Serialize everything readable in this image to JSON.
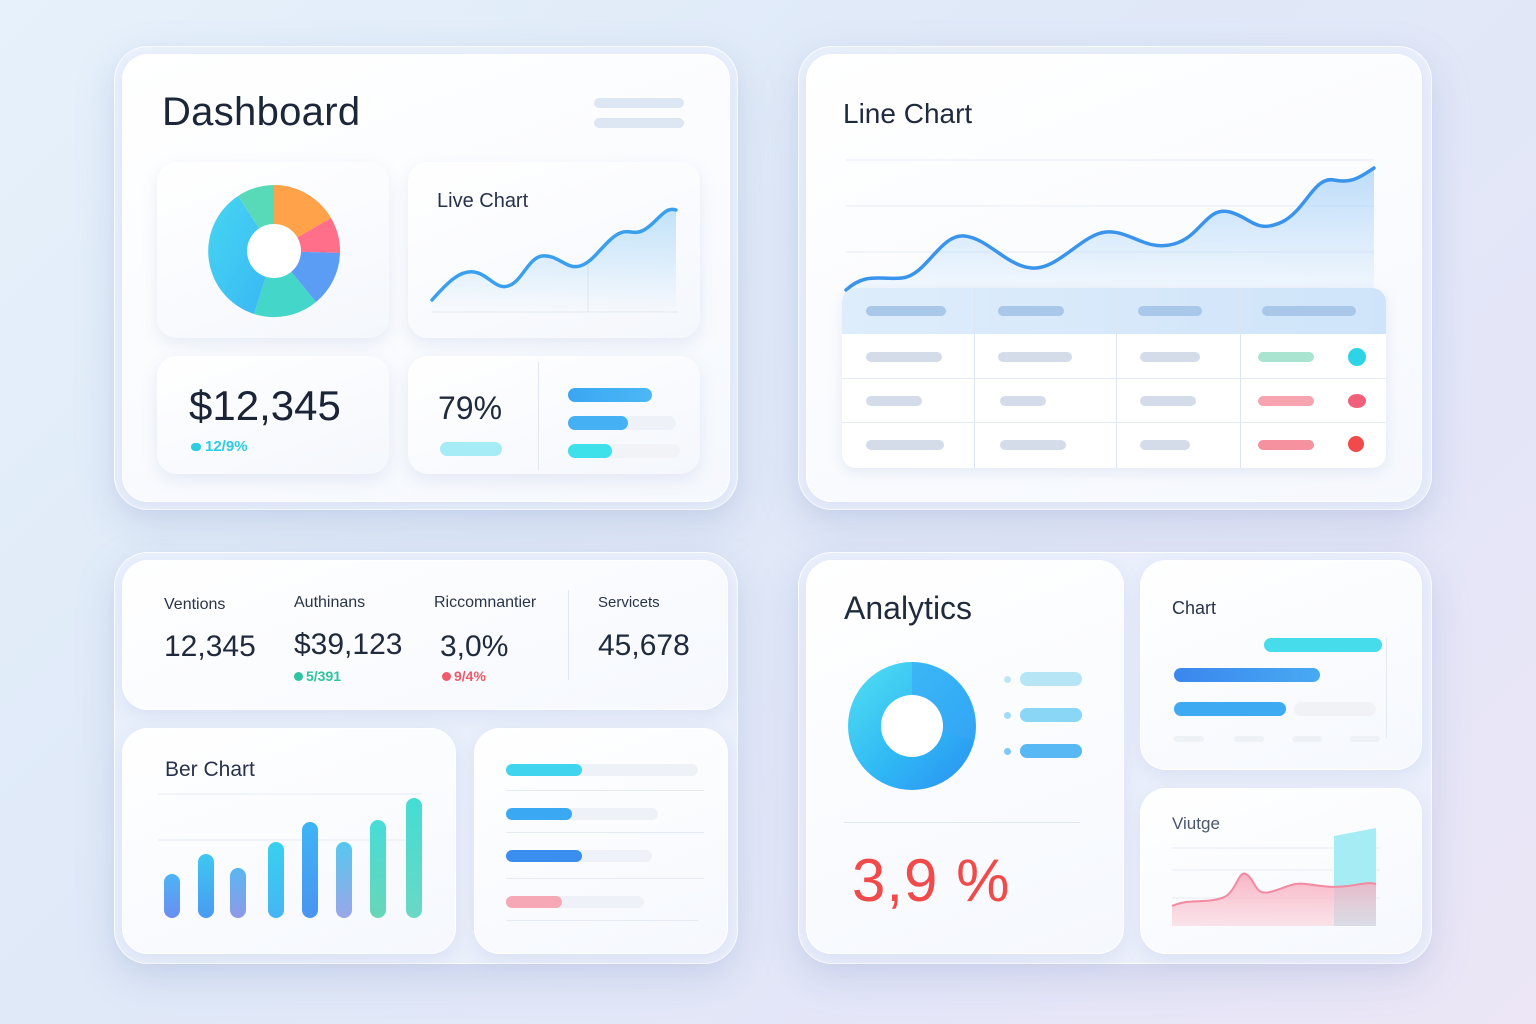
{
  "dashboard": {
    "title": "Dashboard",
    "live_chart_title": "Live Chart",
    "balance_value": "$12,345",
    "balance_change": "12/9%",
    "percent_value": "79%"
  },
  "line_panel": {
    "title": "Line Chart",
    "table_row_status_colors": [
      "#2dd4e6",
      "#f0607a",
      "#f04a4a"
    ]
  },
  "stats": [
    {
      "label": "Ventions",
      "value": "12,345",
      "change": ""
    },
    {
      "label": "Authinans",
      "value": "$39,123",
      "change": "5/391",
      "change_color": "#2ec4a0"
    },
    {
      "label": "Riccomnantier",
      "value": "3,0%",
      "change": "9/4%",
      "change_color": "#f05a6a"
    },
    {
      "label": "Servicets",
      "value": "45,678",
      "change": ""
    }
  ],
  "bar_chart": {
    "title": "Ber Chart"
  },
  "analytics": {
    "title": "Analytics",
    "big_value": "3,9 %",
    "chart_title": "Chart",
    "vintage_title": "Viutge"
  },
  "colors": {
    "accent_cyan": "#33d6ea",
    "accent_blue": "#3a8ef0",
    "accent_red": "#f04a4a",
    "accent_green": "#5fd3b0"
  }
}
